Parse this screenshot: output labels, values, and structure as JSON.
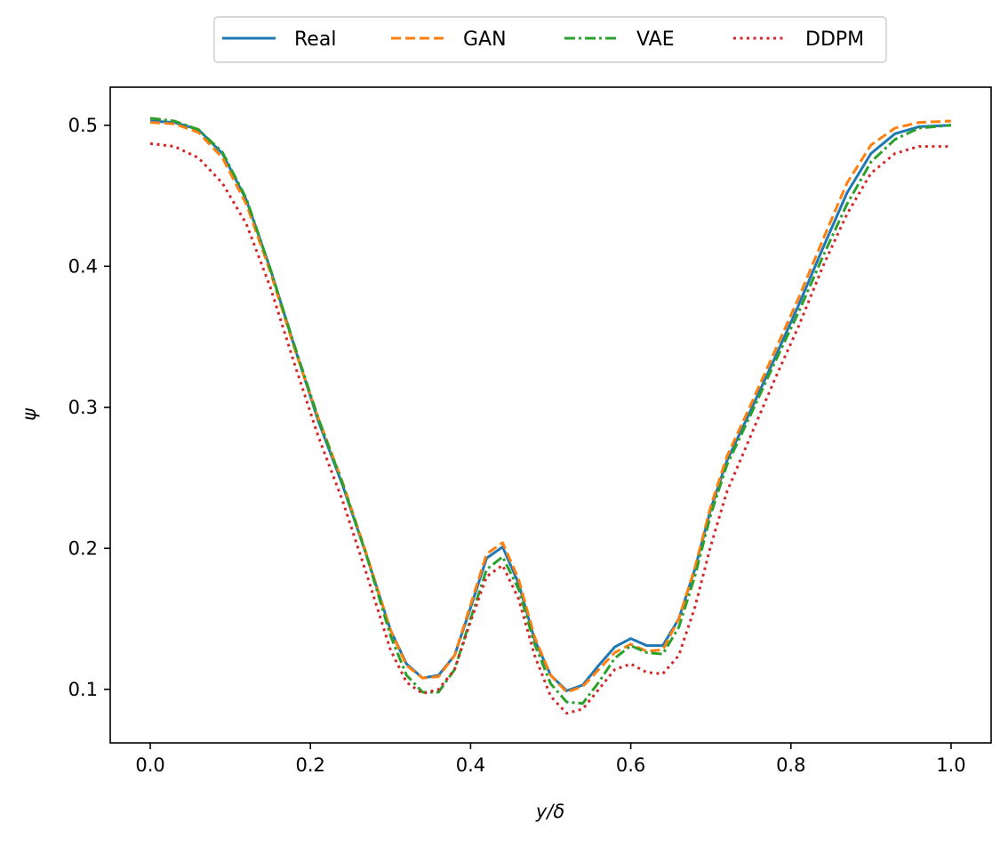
{
  "chart_data": {
    "type": "line",
    "title": "",
    "xlabel": "y/δ",
    "ylabel": "ψ",
    "xlim": [
      -0.05,
      1.05
    ],
    "ylim": [
      0.062,
      0.527
    ],
    "xticks": [
      0.0,
      0.2,
      0.4,
      0.6,
      0.8,
      1.0
    ],
    "xtick_labels": [
      "0.0",
      "0.2",
      "0.4",
      "0.6",
      "0.8",
      "1.0"
    ],
    "yticks": [
      0.1,
      0.2,
      0.3,
      0.4,
      0.5
    ],
    "ytick_labels": [
      "0.1",
      "0.2",
      "0.3",
      "0.4",
      "0.5"
    ],
    "grid": false,
    "legend_position": "top-center, outside",
    "series": [
      {
        "name": "Real",
        "color": "#1f77b4",
        "dash": "solid",
        "x": [
          0.0,
          0.03,
          0.06,
          0.09,
          0.12,
          0.15,
          0.18,
          0.21,
          0.24,
          0.27,
          0.3,
          0.32,
          0.34,
          0.36,
          0.38,
          0.4,
          0.42,
          0.44,
          0.46,
          0.48,
          0.5,
          0.52,
          0.54,
          0.56,
          0.58,
          0.6,
          0.62,
          0.64,
          0.66,
          0.68,
          0.7,
          0.72,
          0.75,
          0.78,
          0.81,
          0.84,
          0.87,
          0.9,
          0.93,
          0.96,
          1.0
        ],
        "y": [
          0.503,
          0.502,
          0.497,
          0.48,
          0.447,
          0.398,
          0.343,
          0.29,
          0.245,
          0.195,
          0.142,
          0.118,
          0.108,
          0.11,
          0.124,
          0.158,
          0.193,
          0.201,
          0.175,
          0.135,
          0.11,
          0.099,
          0.103,
          0.117,
          0.13,
          0.136,
          0.131,
          0.131,
          0.15,
          0.185,
          0.228,
          0.262,
          0.298,
          0.335,
          0.373,
          0.413,
          0.452,
          0.48,
          0.494,
          0.499,
          0.5
        ]
      },
      {
        "name": "GAN",
        "color": "#ff7f0e",
        "dash": "dashed",
        "x": [
          0.0,
          0.03,
          0.06,
          0.09,
          0.12,
          0.15,
          0.18,
          0.21,
          0.24,
          0.27,
          0.3,
          0.32,
          0.34,
          0.36,
          0.38,
          0.4,
          0.42,
          0.44,
          0.46,
          0.48,
          0.5,
          0.52,
          0.54,
          0.56,
          0.58,
          0.6,
          0.62,
          0.64,
          0.66,
          0.68,
          0.7,
          0.72,
          0.75,
          0.78,
          0.81,
          0.84,
          0.87,
          0.9,
          0.93,
          0.96,
          1.0
        ],
        "y": [
          0.502,
          0.501,
          0.495,
          0.477,
          0.444,
          0.396,
          0.342,
          0.292,
          0.247,
          0.196,
          0.142,
          0.117,
          0.108,
          0.109,
          0.124,
          0.16,
          0.196,
          0.204,
          0.178,
          0.137,
          0.11,
          0.098,
          0.102,
          0.114,
          0.126,
          0.132,
          0.127,
          0.128,
          0.15,
          0.186,
          0.23,
          0.265,
          0.302,
          0.34,
          0.378,
          0.419,
          0.459,
          0.486,
          0.498,
          0.502,
          0.503
        ]
      },
      {
        "name": "VAE",
        "color": "#2ca02c",
        "dash": "dashdot",
        "x": [
          0.0,
          0.03,
          0.06,
          0.09,
          0.12,
          0.15,
          0.18,
          0.21,
          0.24,
          0.27,
          0.3,
          0.32,
          0.34,
          0.36,
          0.38,
          0.4,
          0.42,
          0.44,
          0.46,
          0.48,
          0.5,
          0.52,
          0.54,
          0.56,
          0.58,
          0.6,
          0.62,
          0.64,
          0.66,
          0.68,
          0.7,
          0.72,
          0.75,
          0.78,
          0.81,
          0.84,
          0.87,
          0.9,
          0.93,
          0.96,
          1.0
        ],
        "y": [
          0.505,
          0.503,
          0.497,
          0.481,
          0.448,
          0.398,
          0.344,
          0.292,
          0.246,
          0.195,
          0.138,
          0.11,
          0.098,
          0.098,
          0.114,
          0.15,
          0.185,
          0.194,
          0.171,
          0.132,
          0.104,
          0.091,
          0.09,
          0.105,
          0.122,
          0.131,
          0.126,
          0.125,
          0.144,
          0.18,
          0.224,
          0.259,
          0.295,
          0.332,
          0.368,
          0.407,
          0.444,
          0.474,
          0.49,
          0.498,
          0.5
        ]
      },
      {
        "name": "DDPM",
        "color": "#d62728",
        "dash": "dotted",
        "x": [
          0.0,
          0.03,
          0.06,
          0.09,
          0.12,
          0.15,
          0.18,
          0.21,
          0.24,
          0.27,
          0.3,
          0.32,
          0.34,
          0.36,
          0.38,
          0.4,
          0.42,
          0.44,
          0.46,
          0.48,
          0.5,
          0.52,
          0.54,
          0.56,
          0.58,
          0.6,
          0.62,
          0.64,
          0.66,
          0.68,
          0.7,
          0.72,
          0.75,
          0.78,
          0.81,
          0.84,
          0.87,
          0.9,
          0.93,
          0.96,
          1.0
        ],
        "y": [
          0.487,
          0.485,
          0.477,
          0.459,
          0.43,
          0.385,
          0.331,
          0.279,
          0.234,
          0.182,
          0.128,
          0.105,
          0.097,
          0.1,
          0.114,
          0.148,
          0.18,
          0.188,
          0.164,
          0.124,
          0.095,
          0.083,
          0.086,
          0.1,
          0.114,
          0.118,
          0.112,
          0.111,
          0.124,
          0.158,
          0.202,
          0.24,
          0.28,
          0.32,
          0.358,
          0.4,
          0.437,
          0.466,
          0.48,
          0.485,
          0.485
        ]
      }
    ]
  }
}
